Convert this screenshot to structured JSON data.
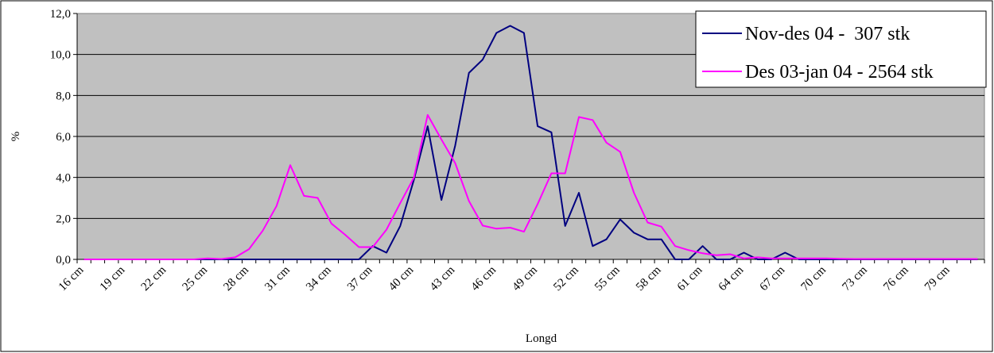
{
  "chart_data": {
    "type": "line",
    "title": "",
    "xlabel": "Longd",
    "ylabel": "%",
    "ylim": [
      0,
      12
    ],
    "y_ticks": [
      "0,0",
      "2,0",
      "4,0",
      "6,0",
      "8,0",
      "10,0",
      "12,0"
    ],
    "grid": true,
    "legend_position": "top-right",
    "plot_background": "#c0c0c0",
    "x": [
      16,
      17,
      18,
      19,
      20,
      21,
      22,
      23,
      24,
      25,
      26,
      27,
      28,
      29,
      30,
      31,
      32,
      33,
      34,
      35,
      36,
      37,
      38,
      39,
      40,
      41,
      42,
      43,
      44,
      45,
      46,
      47,
      48,
      49,
      50,
      51,
      52,
      53,
      54,
      55,
      56,
      57,
      58,
      59,
      60,
      61,
      62,
      63,
      64,
      65,
      66,
      67,
      68,
      69,
      70,
      71,
      72,
      73,
      74,
      75,
      76,
      77,
      78,
      79,
      80,
      81
    ],
    "x_tick_labels": [
      "16 cm",
      "19 cm",
      "22 cm",
      "25 cm",
      "28 cm",
      "31 cm",
      "34 cm",
      "37 cm",
      "40 cm",
      "43 cm",
      "46 cm",
      "49 cm",
      "52 cm",
      "55 cm",
      "58 cm",
      "61 cm",
      "64 cm",
      "67 cm",
      "70 cm",
      "73 cm",
      "76 cm",
      "79 cm"
    ],
    "series": [
      {
        "name": "Nov-des 04 -  307 stk",
        "color": "#000080",
        "values": [
          0,
          0,
          0,
          0,
          0,
          0,
          0,
          0,
          0,
          0,
          0,
          0,
          0,
          0,
          0,
          0,
          0,
          0,
          0,
          0,
          0,
          0.65,
          0.33,
          1.63,
          3.9,
          6.5,
          2.9,
          5.55,
          9.1,
          9.75,
          11.05,
          11.4,
          11.05,
          6.5,
          6.2,
          1.63,
          3.25,
          0.65,
          0.98,
          1.95,
          1.3,
          0.98,
          0.98,
          0,
          0,
          0.65,
          0,
          0,
          0.33,
          0,
          0,
          0.33,
          0,
          0,
          0,
          0,
          0,
          0,
          0,
          0,
          0,
          0,
          0,
          0,
          0,
          0
        ]
      },
      {
        "name": "Des 03-jan 04 - 2564 stk",
        "color": "#ff00ff",
        "values": [
          0,
          0,
          0,
          0,
          0,
          0,
          0,
          0,
          0,
          0.05,
          0.02,
          0.1,
          0.5,
          1.4,
          2.6,
          4.6,
          3.1,
          3.0,
          1.75,
          1.2,
          0.6,
          0.6,
          1.45,
          2.75,
          4.0,
          7.05,
          5.85,
          4.7,
          2.85,
          1.65,
          1.5,
          1.55,
          1.35,
          2.7,
          4.2,
          4.2,
          6.95,
          6.8,
          5.7,
          5.25,
          3.25,
          1.8,
          1.6,
          0.65,
          0.45,
          0.3,
          0.2,
          0.25,
          0.05,
          0.1,
          0.05,
          0.05,
          0.05,
          0.05,
          0.05,
          0.03,
          0.02,
          0.02,
          0.02,
          0.02,
          0.02,
          0.02,
          0.02,
          0.02,
          0.02,
          0.02
        ]
      }
    ]
  }
}
